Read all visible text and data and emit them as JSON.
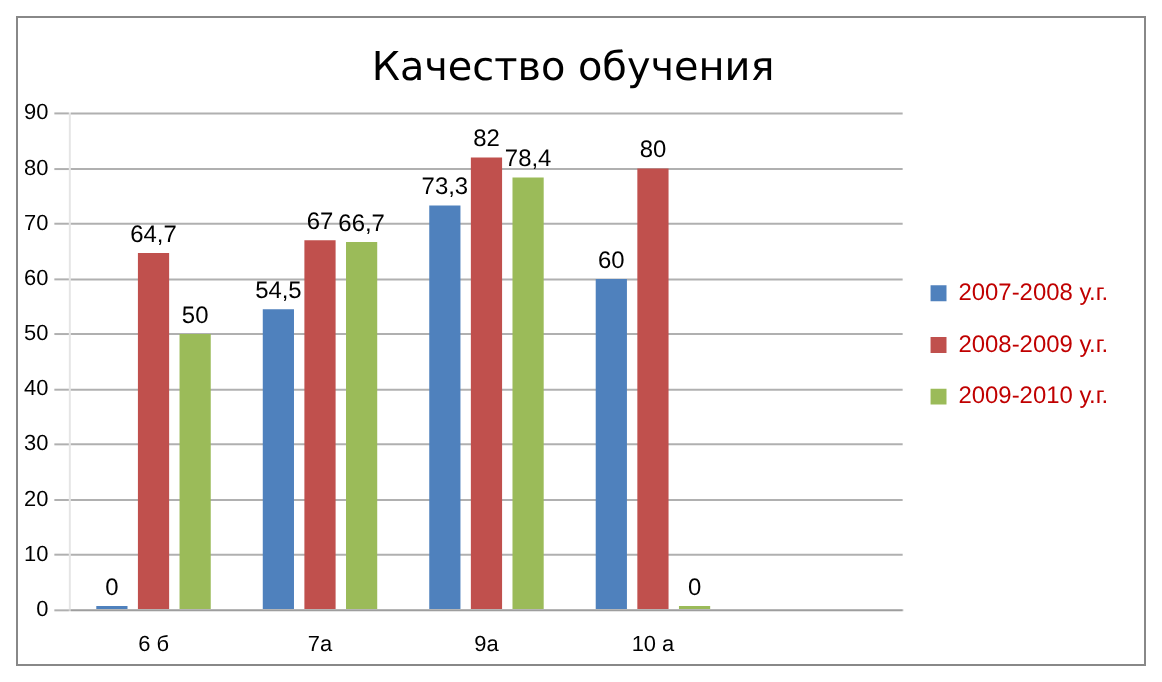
{
  "chart_data": {
    "type": "bar",
    "title": "Качество обучения",
    "categories": [
      "6 б",
      "7а",
      "9а",
      "10 а",
      null
    ],
    "series": [
      {
        "name": "2007-2008 у.г.",
        "color": "#4f81bd",
        "values": [
          0,
          54.5,
          73.3,
          60,
          null
        ],
        "value_labels": [
          "0",
          "54,5",
          "73,3",
          "60",
          null
        ]
      },
      {
        "name": "2008-2009 у.г.",
        "color": "#c0504d",
        "values": [
          64.7,
          67,
          82,
          80,
          null
        ],
        "value_labels": [
          "64,7",
          "67",
          "82",
          "80",
          null
        ]
      },
      {
        "name": "2009-2010 у.г.",
        "color": "#9bbb59",
        "values": [
          50,
          66.7,
          78.4,
          0,
          null
        ],
        "value_labels": [
          "50",
          "66,7",
          "78,4",
          "0",
          null
        ]
      }
    ],
    "ylim": [
      0,
      90
    ],
    "yticks": [
      0,
      10,
      20,
      30,
      40,
      50,
      60,
      70,
      80,
      90
    ],
    "grid": "y",
    "legend": "right"
  }
}
